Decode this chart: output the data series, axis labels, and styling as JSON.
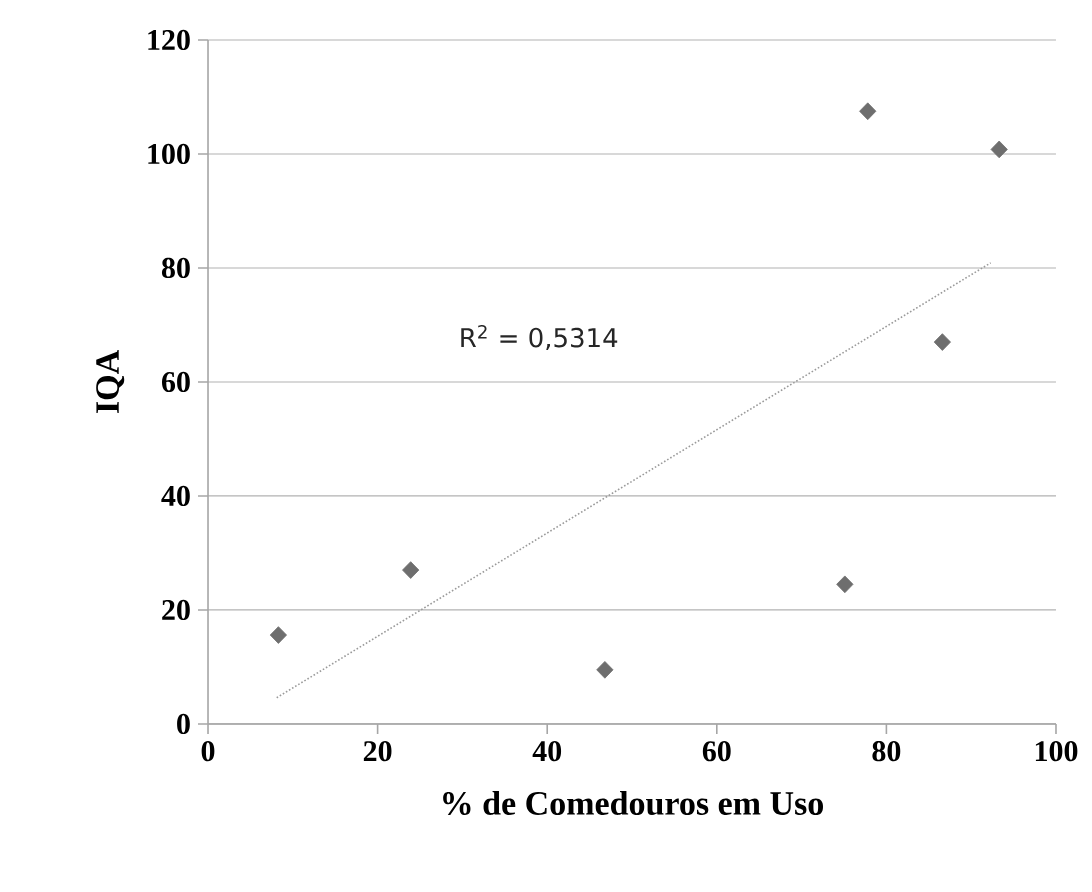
{
  "chart_data": {
    "type": "scatter",
    "xlabel": "% de Comedouros em Uso",
    "ylabel": "IQA",
    "annotations": [
      "R$^{2}$ = 0,5314"
    ],
    "series": [
      {
        "color": "#6e6e6e",
        "marker": "diamond",
        "x": [
          8.3,
          23.9,
          46.8,
          75.1,
          77.8,
          86.6,
          93.3
        ],
        "values": [
          15.6,
          27.0,
          9.5,
          24.5,
          107.5,
          67.0,
          100.8
        ]
      },
      {
        "type": "line",
        "color": "#9a9a9a",
        "line_style": "dotted",
        "x": [
          8.1,
          92.3
        ],
        "values": [
          4.6,
          80.9
        ]
      }
    ],
    "xlim": [
      0,
      100
    ],
    "ylim": [
      0,
      120
    ],
    "xticks": [
      0,
      20,
      40,
      60,
      80,
      100
    ],
    "yticks": [
      0,
      20,
      40,
      60,
      80,
      100,
      120
    ],
    "grid": "y"
  }
}
